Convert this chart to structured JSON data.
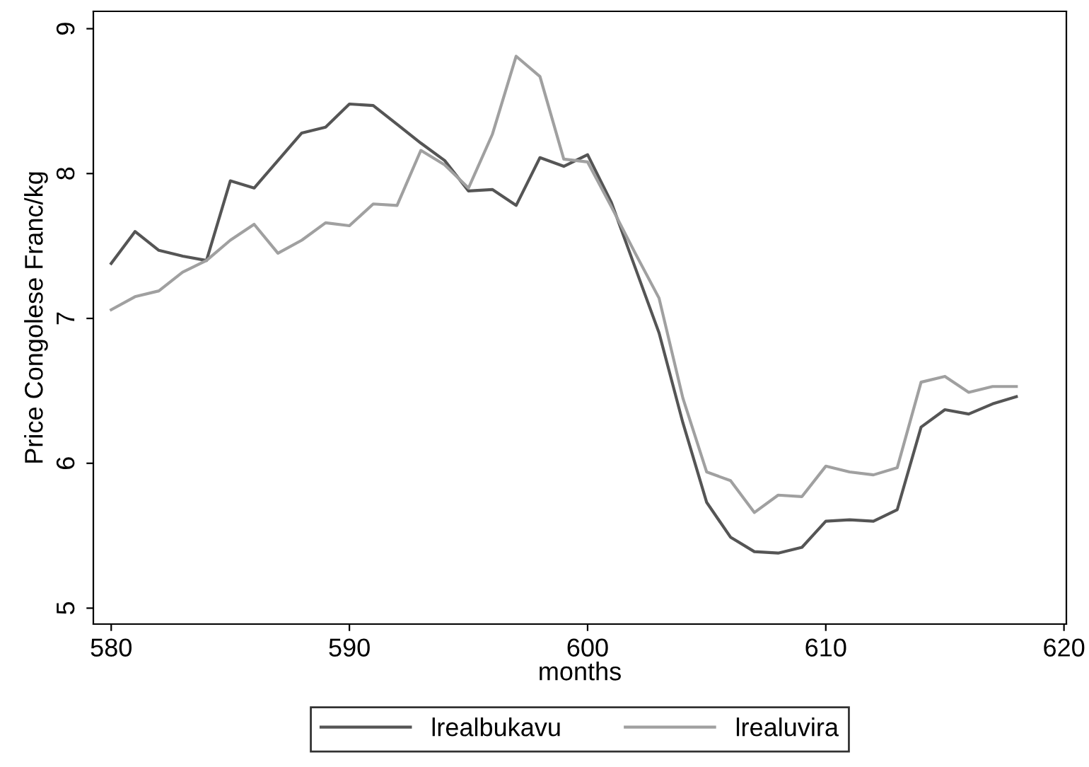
{
  "chart_data": {
    "type": "line",
    "xlabel": "months",
    "ylabel": "Price Congolese Franc/kg",
    "x": [
      580,
      581,
      582,
      583,
      584,
      585,
      586,
      587,
      588,
      589,
      590,
      591,
      592,
      593,
      594,
      595,
      596,
      597,
      598,
      599,
      600,
      601,
      602,
      603,
      604,
      605,
      606,
      607,
      608,
      609,
      610,
      611,
      612,
      613,
      614,
      615,
      616,
      617,
      618
    ],
    "series": [
      {
        "name": "lrealbukavu",
        "color": "#555555",
        "values": [
          7.38,
          7.6,
          7.47,
          7.43,
          7.4,
          7.95,
          7.9,
          8.09,
          8.28,
          8.32,
          8.48,
          8.47,
          8.34,
          8.21,
          8.09,
          7.88,
          7.89,
          7.78,
          8.11,
          8.05,
          8.13,
          7.8,
          7.35,
          6.9,
          6.28,
          5.73,
          5.49,
          5.39,
          5.38,
          5.42,
          5.6,
          5.61,
          5.6,
          5.68,
          6.25,
          6.37,
          6.34,
          6.41,
          6.46
        ]
      },
      {
        "name": "lrealuvira",
        "color": "#a0a0a0",
        "values": [
          7.06,
          7.15,
          7.19,
          7.32,
          7.4,
          7.54,
          7.65,
          7.45,
          7.54,
          7.66,
          7.64,
          7.79,
          7.78,
          8.16,
          8.06,
          7.9,
          8.27,
          8.81,
          8.67,
          8.1,
          8.08,
          7.77,
          7.45,
          7.14,
          6.45,
          5.94,
          5.88,
          5.66,
          5.78,
          5.77,
          5.98,
          5.94,
          5.92,
          5.97,
          6.56,
          6.6,
          6.49,
          6.53,
          6.53
        ]
      }
    ],
    "xlim": [
      579.25,
      620.1
    ],
    "xticks": [
      580,
      590,
      600,
      610,
      620
    ],
    "ylim": [
      4.89,
      9.12
    ],
    "yticks": [
      5,
      6,
      7,
      8,
      9
    ],
    "grid": false,
    "legend": "bottom",
    "marker": "none",
    "line_style": "solid"
  }
}
